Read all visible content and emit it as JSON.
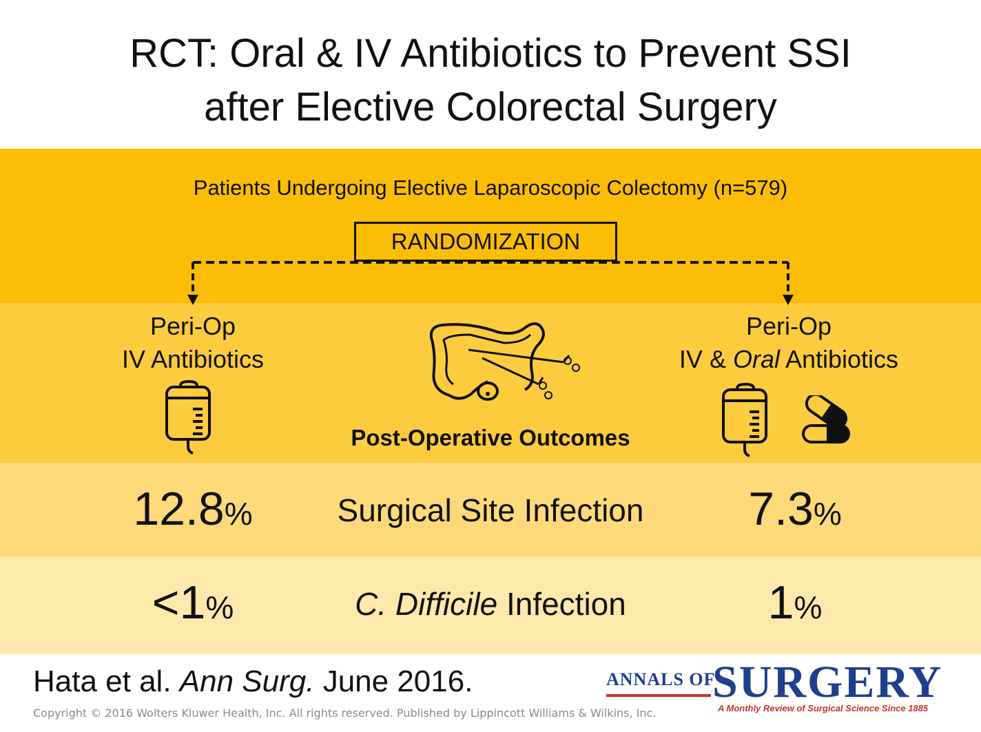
{
  "header": {
    "title_line1": "RCT: Oral & IV Antibiotics to Prevent SSI",
    "title_line2": "after Elective Colorectal Surgery"
  },
  "population": "Patients Undergoing Elective Laparoscopic Colectomy (n=579)",
  "randomization_label": "RANDOMIZATION",
  "arms": {
    "left": {
      "line1": "Peri-Op",
      "line2": "IV Antibiotics",
      "icons": [
        "iv-bag-icon"
      ]
    },
    "right": {
      "line1": "Peri-Op",
      "line2_a": "IV & ",
      "line2_b": "Oral",
      "line2_c": " Antibiotics",
      "icons": [
        "iv-bag-icon",
        "capsule-icon"
      ]
    }
  },
  "center_icon": "colon-surgery-icon",
  "outcomes_heading": "Post-Operative Outcomes",
  "outcomes": [
    {
      "label": "Surgical Site Infection",
      "left_value": "12.8",
      "right_value": "7.3",
      "unit": "%"
    },
    {
      "label_italic": "C. Difficile",
      "label_rest": " Infection",
      "left_value": "<1",
      "right_value": "1",
      "unit": "%"
    }
  ],
  "citation": {
    "authors": "Hata et al. ",
    "journal": "Ann Surg.",
    "date": " June 2016."
  },
  "copyright": "Copyright © 2016 Wolters Kluwer Health, Inc. All rights reserved.   Published by Lippincott Williams & Wilkins, Inc.",
  "logo": {
    "small": "ANNALS OF",
    "big": "SURGERY",
    "tagline": "A Monthly Review of Surgical Science Since 1885"
  },
  "colors": {
    "band1": "#fbbd05",
    "band2": "#fdcb3e",
    "band3": "#fed97a",
    "band4": "#fee8ab",
    "logo_blue": "#1f3f8c",
    "logo_red": "#c8322b"
  }
}
